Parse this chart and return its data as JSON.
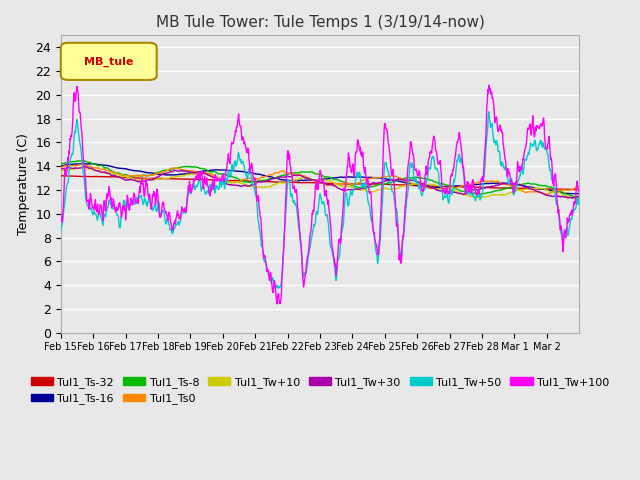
{
  "title": "MB Tule Tower: Tule Temps 1 (3/19/14-now)",
  "ylabel": "Temperature (C)",
  "ylim": [
    0,
    25
  ],
  "yticks": [
    0,
    2,
    4,
    6,
    8,
    10,
    12,
    14,
    16,
    18,
    20,
    22,
    24
  ],
  "xtick_labels": [
    "Feb 15",
    "Feb 16",
    "Feb 17",
    "Feb 18",
    "Feb 19",
    "Feb 20",
    "Feb 21",
    "Feb 22",
    "Feb 23",
    "Feb 24",
    "Feb 25",
    "Feb 26",
    "Feb 27",
    "Feb 28",
    "Mar 1",
    "Mar 2"
  ],
  "legend_label": "MB_tule",
  "series_colors": {
    "Tul1_Ts-32": "#cc0000",
    "Tul1_Ts-16": "#000099",
    "Tul1_Ts-8": "#00bb00",
    "Tul1_Ts0": "#ff8800",
    "Tul1_Tw+10": "#cccc00",
    "Tul1_Tw+30": "#aa00aa",
    "Tul1_Tw+50": "#00cccc",
    "Tul1_Tw+100": "#ff00ff"
  },
  "bg_color": "#e8e8e8",
  "grid_color": "#ffffff",
  "title_fontsize": 11,
  "axis_fontsize": 9,
  "legend_fontsize": 8,
  "num_points": 960
}
